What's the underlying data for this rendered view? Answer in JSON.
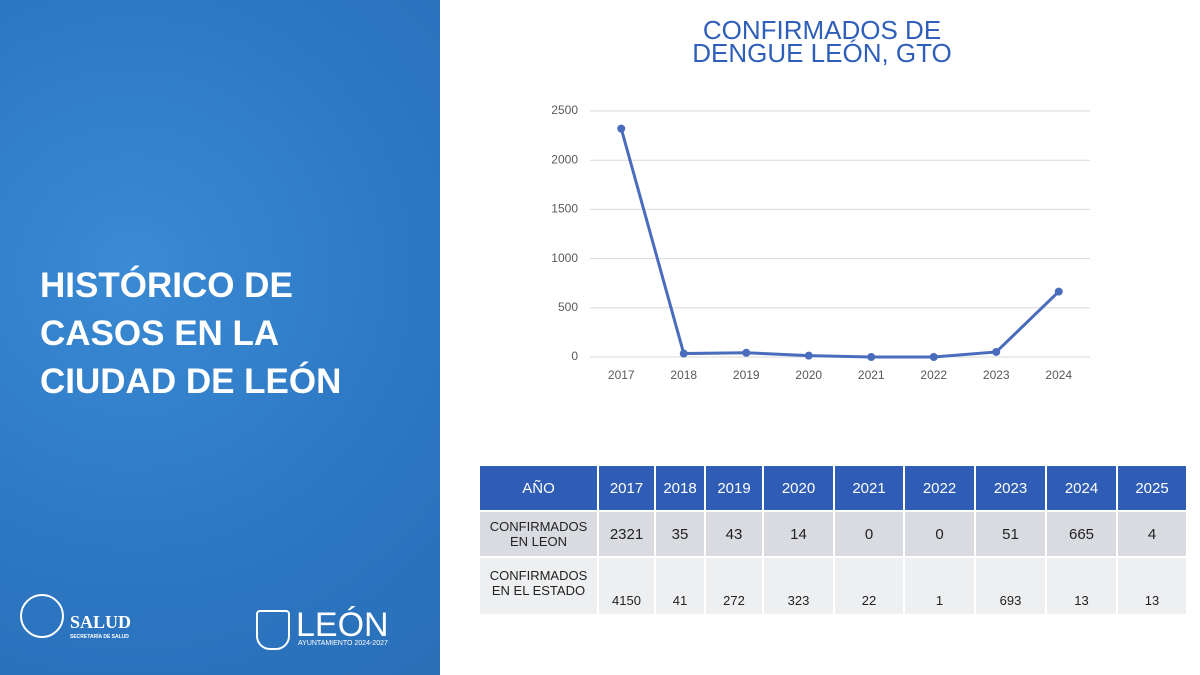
{
  "panel": {
    "title_lines": [
      "HISTÓRICO DE",
      "CASOS EN LA",
      "CIUDAD DE LEÓN"
    ],
    "logo_salud": "SALUD",
    "logo_salud_sub": "SECRETARÍA DE SALUD",
    "logo_leon": "LEÓN",
    "logo_leon_sub": "AYUNTAMIENTO 2024-2027"
  },
  "chart_data": {
    "type": "line",
    "title": [
      "CONFIRMADOS DE",
      "DENGUE LEÓN, GTO"
    ],
    "categories": [
      "2017",
      "2018",
      "2019",
      "2020",
      "2021",
      "2022",
      "2023",
      "2024"
    ],
    "values": [
      2321,
      35,
      43,
      14,
      0,
      0,
      51,
      665
    ],
    "color": "#4a6cbd",
    "ylim": [
      0,
      2500
    ],
    "yticks": [
      0,
      500,
      1000,
      1500,
      2000,
      2500
    ],
    "grid": true
  },
  "table": {
    "header": [
      "AÑO",
      "2017",
      "2018",
      "2019",
      "2020",
      "2021",
      "2022",
      "2023",
      "2024",
      "2025"
    ],
    "rows": [
      [
        "CONFIRMADOS EN LEON",
        "2321",
        "35",
        "43",
        "14",
        "0",
        "0",
        "51",
        "665",
        "4"
      ],
      [
        "CONFIRMADOS EN EL ESTADO",
        "4150",
        "41",
        "272",
        "323",
        "22",
        "1",
        "693",
        "13",
        "13"
      ]
    ]
  }
}
